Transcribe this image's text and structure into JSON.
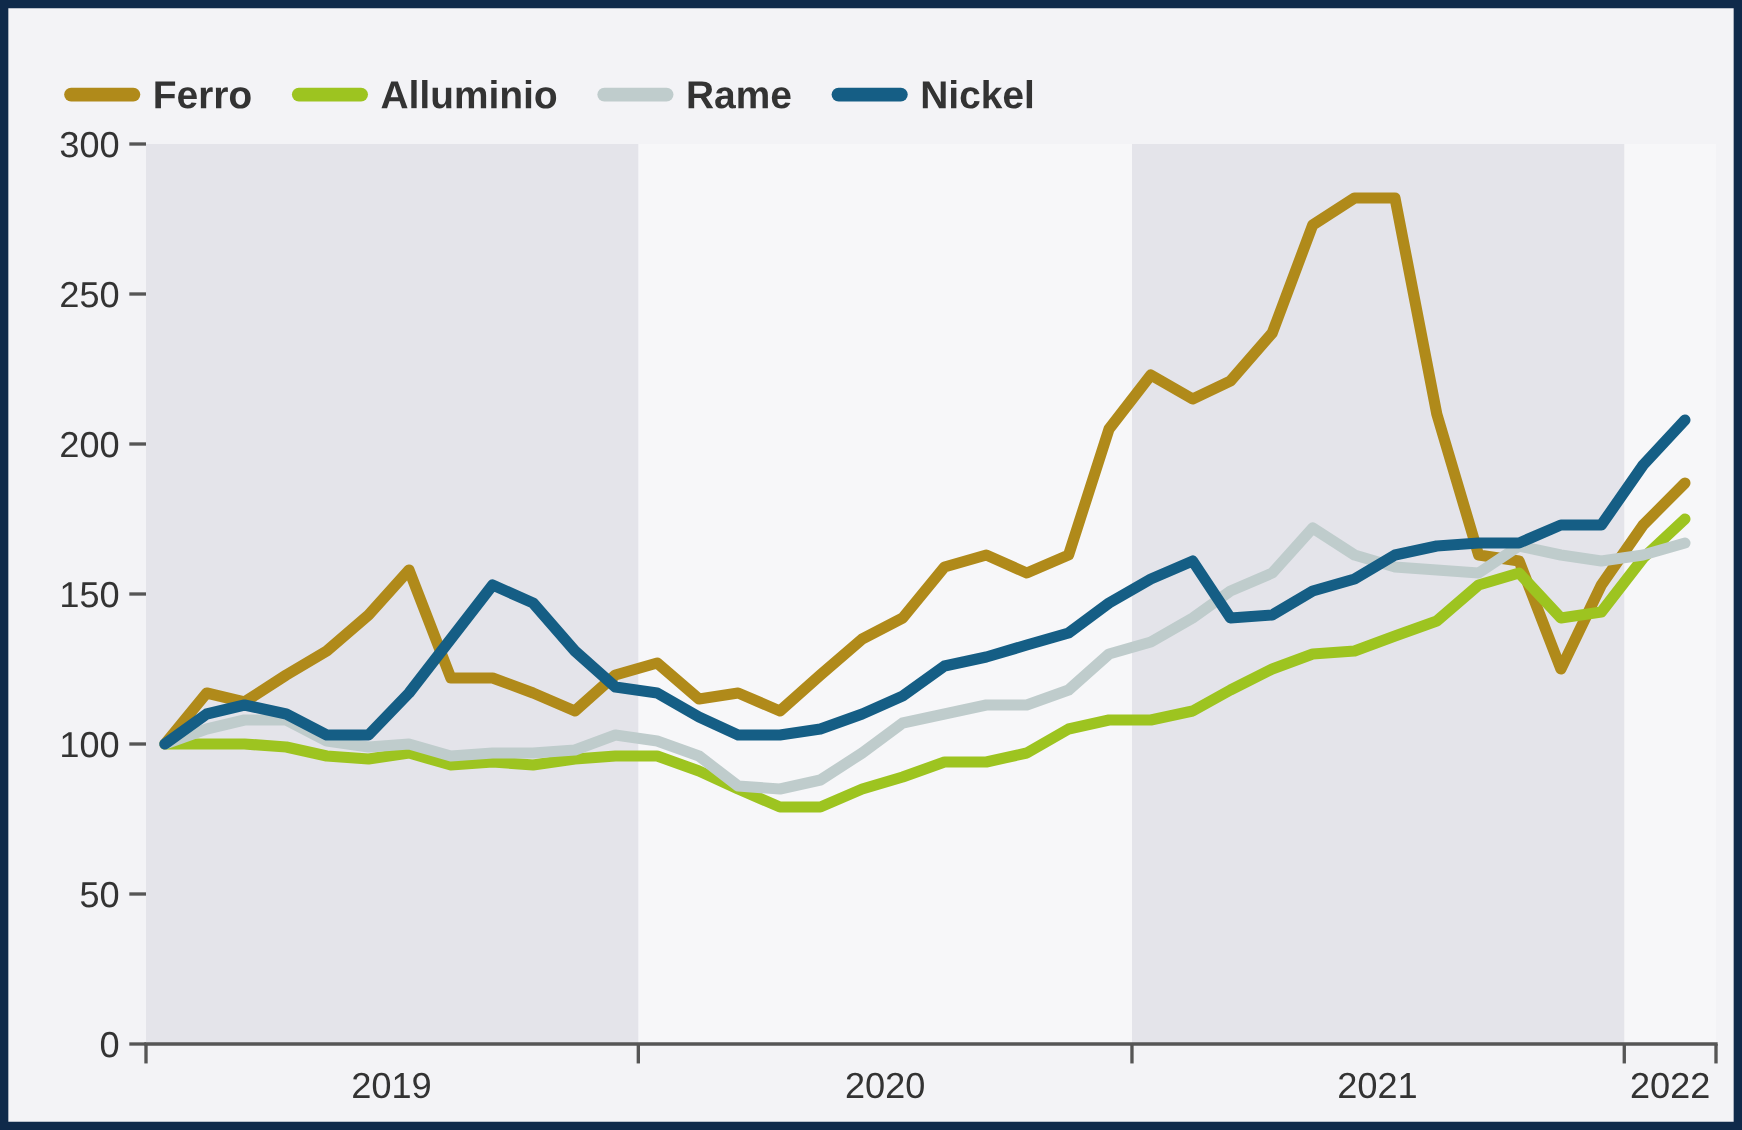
{
  "chart_data": {
    "type": "line",
    "x": [
      "2019-01-15",
      "2019-02-15",
      "2019-03-15",
      "2019-04-15",
      "2019-05-15",
      "2019-06-15",
      "2019-07-15",
      "2019-08-15",
      "2019-09-15",
      "2019-10-15",
      "2019-11-15",
      "2019-12-15",
      "2020-01-15",
      "2020-02-15",
      "2020-03-15",
      "2020-04-15",
      "2020-05-15",
      "2020-06-15",
      "2020-07-15",
      "2020-08-15",
      "2020-09-15",
      "2020-10-15",
      "2020-11-15",
      "2020-12-15",
      "2021-01-15",
      "2021-02-15",
      "2021-03-15",
      "2021-04-15",
      "2021-05-15",
      "2021-06-15",
      "2021-07-15",
      "2021-08-15",
      "2021-09-15",
      "2021-10-15",
      "2021-11-15",
      "2021-12-15",
      "2022-01-15",
      "2022-02-15"
    ],
    "series": [
      {
        "name": "Ferro",
        "color": "#b08a1a",
        "values": [
          100,
          117,
          114,
          123,
          131,
          143,
          158,
          122,
          122,
          117,
          111,
          123,
          127,
          115,
          117,
          111,
          123,
          135,
          142,
          159,
          163,
          157,
          163,
          205,
          223,
          215,
          221,
          237,
          273,
          282,
          282,
          210,
          163,
          161,
          125,
          153,
          173,
          187
        ]
      },
      {
        "name": "Alluminio",
        "color": "#9dc420",
        "values": [
          100,
          100,
          100,
          99,
          96,
          95,
          97,
          93,
          94,
          93,
          95,
          96,
          96,
          91,
          85,
          79,
          79,
          85,
          89,
          94,
          94,
          97,
          105,
          108,
          108,
          111,
          118,
          125,
          130,
          131,
          136,
          141,
          153,
          157,
          142,
          144,
          162,
          175
        ]
      },
      {
        "name": "Rame",
        "color": "#bfcccc",
        "values": [
          100,
          105,
          108,
          108,
          101,
          99,
          100,
          96,
          97,
          97,
          98,
          103,
          101,
          96,
          86,
          85,
          88,
          97,
          107,
          110,
          113,
          113,
          118,
          130,
          134,
          142,
          151,
          157,
          172,
          163,
          159,
          158,
          157,
          166,
          163,
          161,
          163,
          167
        ]
      },
      {
        "name": "Nickel",
        "color": "#155e85",
        "values": [
          100,
          110,
          113,
          110,
          103,
          103,
          117,
          135,
          153,
          147,
          131,
          119,
          117,
          109,
          103,
          103,
          105,
          110,
          116,
          126,
          129,
          133,
          137,
          147,
          155,
          161,
          142,
          143,
          151,
          155,
          163,
          166,
          167,
          167,
          173,
          173,
          193,
          208
        ]
      }
    ],
    "xlim": [
      "2019-01-01",
      "2022-03-10"
    ],
    "xticks": [
      {
        "value": "2019-01-01",
        "label": null
      },
      {
        "value": "2019-07-02",
        "label": "2019"
      },
      {
        "value": "2020-01-01",
        "label": null
      },
      {
        "value": "2020-07-02",
        "label": "2020"
      },
      {
        "value": "2021-01-01",
        "label": null
      },
      {
        "value": "2021-07-02",
        "label": "2021"
      },
      {
        "value": "2022-01-01",
        "label": null
      },
      {
        "value": "2022-02-04",
        "label": "2022"
      },
      {
        "value": "2022-03-10",
        "label": null
      }
    ],
    "ylim": [
      0,
      300
    ],
    "yticks": [
      0,
      50,
      100,
      150,
      200,
      250,
      300
    ],
    "bands": [
      {
        "axis": "x",
        "from": "2019-01-01",
        "to": "2020-01-01",
        "color": "#e4e4ea"
      },
      {
        "axis": "x",
        "from": "2021-01-01",
        "to": "2022-01-01",
        "color": "#e4e4ea"
      }
    ],
    "grid": false,
    "legend": "top left",
    "marker": "none",
    "line_style": "solid"
  }
}
